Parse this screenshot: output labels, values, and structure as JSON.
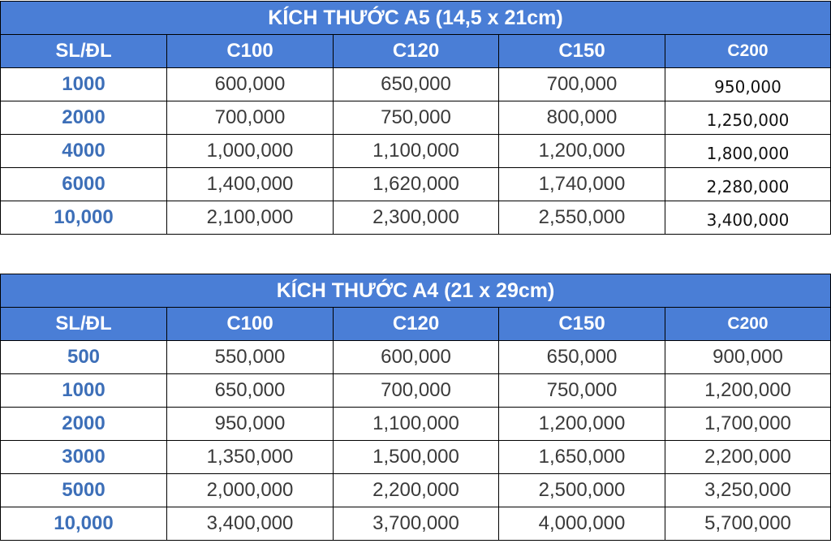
{
  "tables": [
    {
      "title": "KÍCH THƯỚC A5 (14,5 x 21cm)",
      "headers": [
        "SL/ĐL",
        "C100",
        "C120",
        "C150",
        "C200"
      ],
      "rows": [
        [
          "1000",
          "600,000",
          "650,000",
          "700,000",
          "950,000"
        ],
        [
          "2000",
          "700,000",
          "750,000",
          "800,000",
          "1,250,000"
        ],
        [
          "4000",
          "1,000,000",
          "1,100,000",
          "1,200,000",
          "1,800,000"
        ],
        [
          "6000",
          "1,400,000",
          "1,620,000",
          "1,740,000",
          "2,280,000"
        ],
        [
          "10,000",
          "2,100,000",
          "2,300,000",
          "2,550,000",
          "3,400,000"
        ]
      ]
    },
    {
      "title": "KÍCH THƯỚC A4 (21 x 29cm)",
      "headers": [
        "SL/ĐL",
        "C100",
        "C120",
        "C150",
        "C200"
      ],
      "rows": [
        [
          "500",
          "550,000",
          "600,000",
          "650,000",
          "900,000"
        ],
        [
          "1000",
          "650,000",
          "700,000",
          "750,000",
          "1,200,000"
        ],
        [
          "2000",
          "950,000",
          "1,100,000",
          "1,200,000",
          "1,700,000"
        ],
        [
          "3000",
          "1,350,000",
          "1,500,000",
          "1,650,000",
          "2,200,000"
        ],
        [
          "5000",
          "2,000,000",
          "2,200,000",
          "2,500,000",
          "3,250,000"
        ],
        [
          "10,000",
          "3,400,000",
          "3,700,000",
          "4,000,000",
          "5,700,000"
        ]
      ]
    }
  ],
  "colors": {
    "header_bg": "#4a7ed6",
    "header_text": "#ffffff",
    "quantity_text": "#3d6fb8",
    "price_text": "#3a3a3a",
    "border": "#000000"
  }
}
